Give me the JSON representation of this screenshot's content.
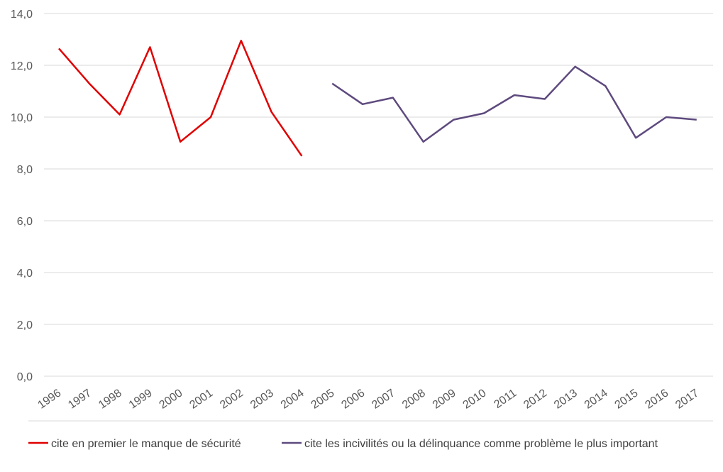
{
  "chart_data": {
    "type": "line",
    "title": "",
    "xlabel": "",
    "ylabel": "",
    "ylim": [
      0,
      14
    ],
    "yticks": [
      "0,0",
      "2,0",
      "4,0",
      "6,0",
      "8,0",
      "10,0",
      "12,0",
      "14,0"
    ],
    "ytick_values": [
      0,
      2,
      4,
      6,
      8,
      10,
      12,
      14
    ],
    "categories": [
      "1996",
      "1997",
      "1998",
      "1999",
      "2000",
      "2001",
      "2002",
      "2003",
      "2004",
      "2005",
      "2006",
      "2007",
      "2008",
      "2009",
      "2010",
      "2011",
      "2012",
      "2013",
      "2014",
      "2015",
      "2016",
      "2017"
    ],
    "grid": true,
    "legend_position": "bottom",
    "series": [
      {
        "name": "cite en premier le manque de sécurité",
        "color": "#e00000",
        "values": [
          12.65,
          11.3,
          10.1,
          12.7,
          9.05,
          10.0,
          12.95,
          10.2,
          8.5,
          null,
          null,
          null,
          null,
          null,
          null,
          null,
          null,
          null,
          null,
          null,
          null,
          null
        ]
      },
      {
        "name": "cite les incivilités ou la délinquance comme problème le plus important",
        "color": "#5e4a7e",
        "values": [
          null,
          null,
          null,
          null,
          null,
          null,
          null,
          null,
          null,
          11.3,
          10.5,
          10.75,
          9.05,
          9.9,
          10.15,
          10.85,
          10.7,
          11.95,
          11.2,
          9.2,
          10.0,
          9.9
        ]
      }
    ]
  }
}
